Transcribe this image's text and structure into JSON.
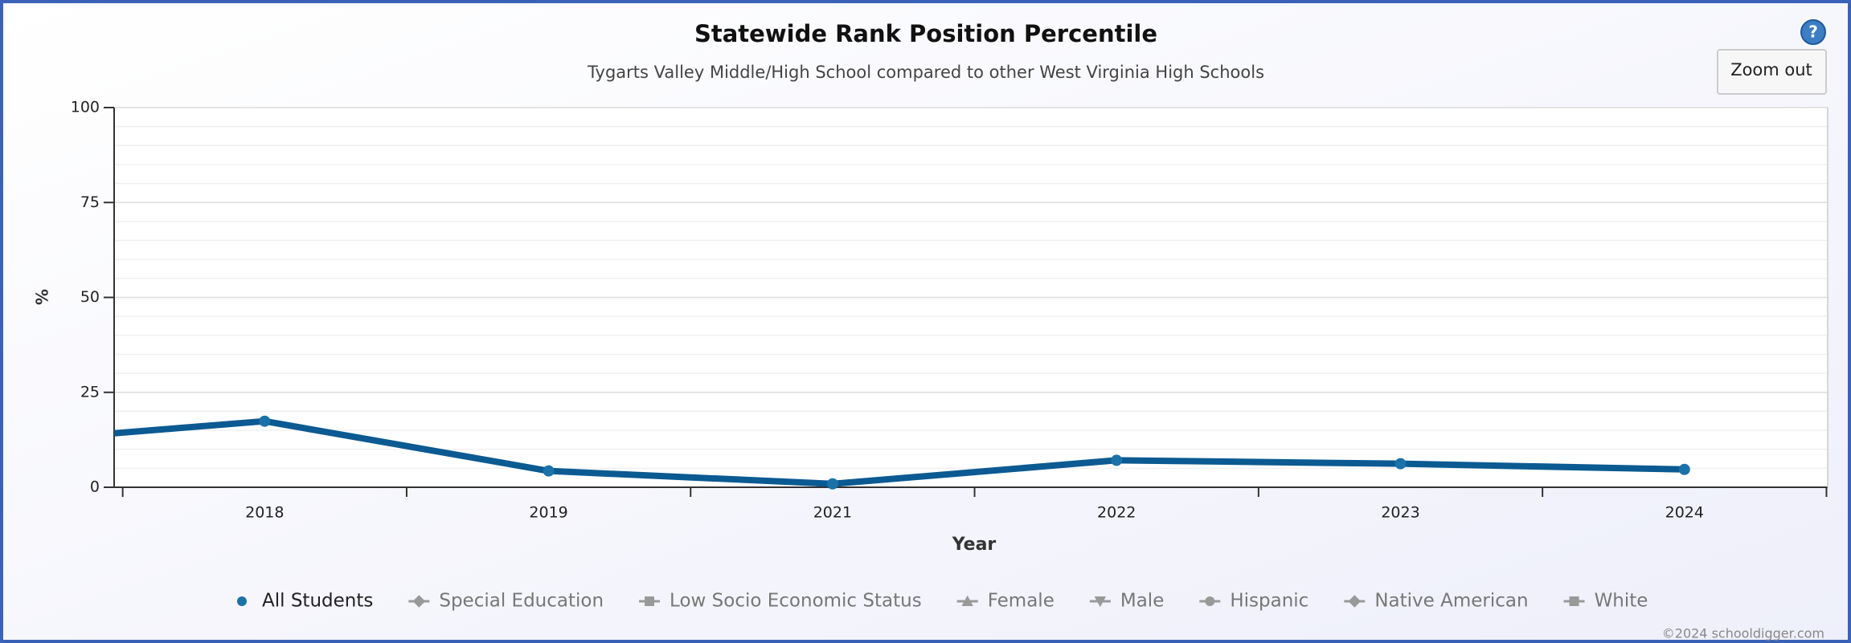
{
  "chart_data": {
    "type": "line",
    "title": "Statewide Rank Position Percentile",
    "subtitle": "Tygarts Valley Middle/High School compared to other West Virginia High Schools",
    "x_label": "Year",
    "y_label": "%",
    "categories": [
      null,
      "2018",
      "2019",
      "2021",
      "2022",
      "2023",
      "2024"
    ],
    "series": [
      {
        "name": "All Students",
        "color": "#0b5a92",
        "marker": "circle",
        "values": [
          11.4,
          17.4,
          4.3,
          0.9,
          7.1,
          6.2,
          4.7
        ]
      },
      {
        "name": "Special Education",
        "color": "#999999",
        "marker": "diamond",
        "values": [
          null,
          null,
          null,
          null,
          null,
          null,
          null
        ]
      },
      {
        "name": "Low Socio Economic Status",
        "color": "#999999",
        "marker": "square",
        "values": [
          null,
          null,
          null,
          null,
          null,
          null,
          null
        ]
      },
      {
        "name": "Female",
        "color": "#999999",
        "marker": "triangle",
        "values": [
          null,
          null,
          null,
          null,
          null,
          null,
          null
        ]
      },
      {
        "name": "Male",
        "color": "#999999",
        "marker": "triangle-down",
        "values": [
          null,
          null,
          null,
          null,
          null,
          null,
          null
        ]
      },
      {
        "name": "Hispanic",
        "color": "#999999",
        "marker": "circle",
        "values": [
          null,
          null,
          null,
          null,
          null,
          null,
          null
        ]
      },
      {
        "name": "Native American",
        "color": "#999999",
        "marker": "diamond",
        "values": [
          null,
          null,
          null,
          null,
          null,
          null,
          null
        ]
      },
      {
        "name": "White",
        "color": "#999999",
        "marker": "square",
        "values": [
          null,
          null,
          null,
          null,
          null,
          null,
          null
        ]
      }
    ],
    "ylim": [
      0,
      100
    ],
    "yticks": [
      0,
      25,
      50,
      75,
      100
    ],
    "grid": true,
    "legend": "bottom",
    "button": "Zoom out",
    "help": "?",
    "credit": "©2024 schooldigger.com"
  }
}
